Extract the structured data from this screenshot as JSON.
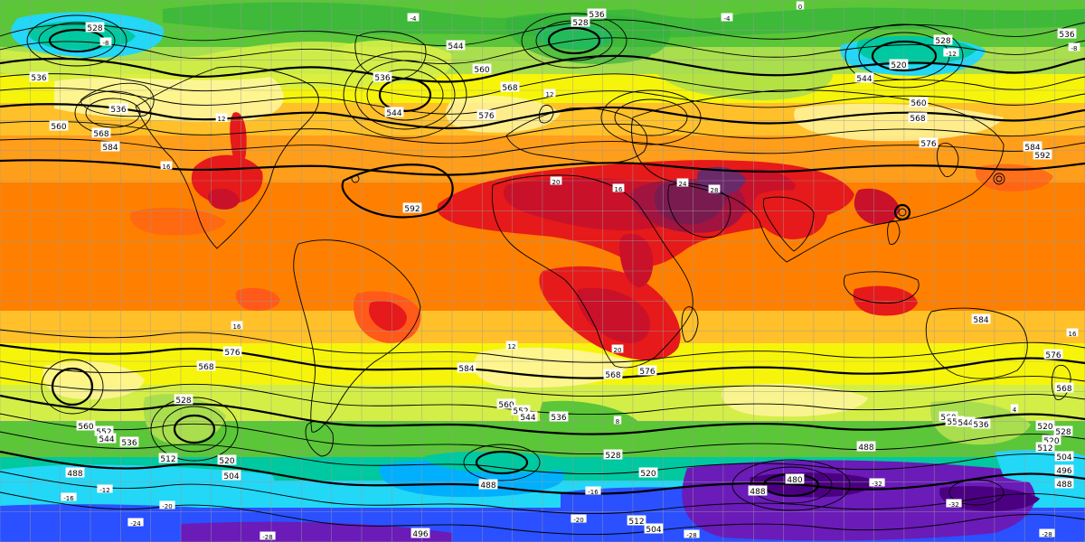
{
  "map": {
    "type": "weather-map",
    "projection": "equirectangular",
    "colors": {
      "purple_dark": "#4b0082",
      "purple": "#6a1bb8",
      "blue": "#2b50ff",
      "cyan_blue": "#00b0ff",
      "cyan": "#23d7f7",
      "teal": "#00c8a0",
      "green_dark": "#32b43c",
      "green": "#5bc638",
      "light_green": "#a9de4e",
      "yellow_green": "#d4ee48",
      "yellow": "#f6f40a",
      "light_yellow": "#fff59c",
      "light_orange": "#ffc02a",
      "orange": "#ff9e1a",
      "dark_orange": "#ff8000",
      "red_orange": "#ff5a1a",
      "red": "#e61a1a",
      "dark_red": "#c9112a",
      "crimson": "#a1143f",
      "maroon": "#7a1b4f",
      "plum": "#6a2a6a",
      "black": "#000000",
      "grid": "#9a9a9a"
    },
    "contour_labels": [
      {
        "text": "528",
        "col": 105,
        "row": 31
      },
      {
        "text": "536",
        "col": 43,
        "row": 86
      },
      {
        "text": "536",
        "col": 131,
        "row": 121
      },
      {
        "text": "560",
        "col": 65,
        "row": 140
      },
      {
        "text": "568",
        "col": 112,
        "row": 148
      },
      {
        "text": "584",
        "col": 122,
        "row": 163
      },
      {
        "text": "536",
        "col": 423,
        "row": 86
      },
      {
        "text": "544",
        "col": 436,
        "row": 125
      },
      {
        "text": "544",
        "col": 504,
        "row": 51
      },
      {
        "text": "528",
        "col": 642,
        "row": 25
      },
      {
        "text": "536",
        "col": 660,
        "row": 16
      },
      {
        "text": "560",
        "col": 533,
        "row": 77
      },
      {
        "text": "568",
        "col": 564,
        "row": 97
      },
      {
        "text": "576",
        "col": 538,
        "row": 128
      },
      {
        "text": "528",
        "col": 1043,
        "row": 45
      },
      {
        "text": "520",
        "col": 994,
        "row": 72
      },
      {
        "text": "544",
        "col": 956,
        "row": 87
      },
      {
        "text": "560",
        "col": 1016,
        "row": 114
      },
      {
        "text": "568",
        "col": 1015,
        "row": 131
      },
      {
        "text": "576",
        "col": 1027,
        "row": 159
      },
      {
        "text": "584",
        "col": 1142,
        "row": 163
      },
      {
        "text": "592",
        "col": 1153,
        "row": 172
      },
      {
        "text": "536",
        "col": 1180,
        "row": 38
      },
      {
        "text": "592",
        "col": 456,
        "row": 231
      },
      {
        "text": "576",
        "col": 257,
        "row": 390
      },
      {
        "text": "568",
        "col": 228,
        "row": 406
      },
      {
        "text": "584",
        "col": 516,
        "row": 408
      },
      {
        "text": "576",
        "col": 716,
        "row": 411
      },
      {
        "text": "568",
        "col": 678,
        "row": 415
      },
      {
        "text": "560",
        "col": 560,
        "row": 448
      },
      {
        "text": "552",
        "col": 576,
        "row": 455
      },
      {
        "text": "544",
        "col": 584,
        "row": 462
      },
      {
        "text": "536",
        "col": 618,
        "row": 462
      },
      {
        "text": "528",
        "col": 203,
        "row": 443
      },
      {
        "text": "560",
        "col": 95,
        "row": 472
      },
      {
        "text": "552",
        "col": 115,
        "row": 478
      },
      {
        "text": "544",
        "col": 118,
        "row": 486
      },
      {
        "text": "536",
        "col": 143,
        "row": 490
      },
      {
        "text": "512",
        "col": 186,
        "row": 508
      },
      {
        "text": "520",
        "col": 251,
        "row": 510
      },
      {
        "text": "504",
        "col": 256,
        "row": 527
      },
      {
        "text": "488",
        "col": 83,
        "row": 524
      },
      {
        "text": "488",
        "col": 540,
        "row": 537
      },
      {
        "text": "520",
        "col": 717,
        "row": 524
      },
      {
        "text": "528",
        "col": 678,
        "row": 504
      },
      {
        "text": "480",
        "col": 879,
        "row": 531
      },
      {
        "text": "488",
        "col": 838,
        "row": 544
      },
      {
        "text": "512",
        "col": 704,
        "row": 577
      },
      {
        "text": "504",
        "col": 723,
        "row": 586
      },
      {
        "text": "496",
        "col": 465,
        "row": 591
      },
      {
        "text": "584",
        "col": 1085,
        "row": 354
      },
      {
        "text": "576",
        "col": 1165,
        "row": 393
      },
      {
        "text": "568",
        "col": 1177,
        "row": 430
      },
      {
        "text": "560",
        "col": 1049,
        "row": 462
      },
      {
        "text": "552",
        "col": 1056,
        "row": 467
      },
      {
        "text": "544",
        "col": 1068,
        "row": 468
      },
      {
        "text": "536",
        "col": 1085,
        "row": 470
      },
      {
        "text": "520",
        "col": 1156,
        "row": 472
      },
      {
        "text": "528",
        "col": 1176,
        "row": 478
      },
      {
        "text": "520",
        "col": 1163,
        "row": 488
      },
      {
        "text": "512",
        "col": 1156,
        "row": 496
      },
      {
        "text": "504",
        "col": 1177,
        "row": 506
      },
      {
        "text": "496",
        "col": 1177,
        "row": 521
      },
      {
        "text": "488",
        "col": 1177,
        "row": 536
      },
      {
        "text": "488",
        "col": 958,
        "row": 495
      }
    ],
    "temperature_labels": [
      {
        "text": "-8",
        "col": 117,
        "row": 47
      },
      {
        "text": "-4",
        "col": 457,
        "row": 20
      },
      {
        "text": "-12",
        "col": 1052,
        "row": 59
      },
      {
        "text": "-12",
        "col": 116,
        "row": 542
      },
      {
        "text": "-16",
        "col": 76,
        "row": 551
      },
      {
        "text": "-20",
        "col": 185,
        "row": 560
      },
      {
        "text": "-24",
        "col": 150,
        "row": 579
      },
      {
        "text": "-16",
        "col": 656,
        "row": 544
      },
      {
        "text": "-20",
        "col": 640,
        "row": 575
      },
      {
        "text": "-28",
        "col": 296,
        "row": 594
      },
      {
        "text": "-28",
        "col": 765,
        "row": 592
      },
      {
        "text": "-32",
        "col": 970,
        "row": 535
      },
      {
        "text": "-32",
        "col": 1055,
        "row": 558
      },
      {
        "text": "-28",
        "col": 1158,
        "row": 591
      },
      {
        "text": "4",
        "col": 1122,
        "row": 453
      },
      {
        "text": "8",
        "col": 683,
        "row": 466
      },
      {
        "text": "12",
        "col": 566,
        "row": 383
      },
      {
        "text": "16",
        "col": 262,
        "row": 361
      },
      {
        "text": "16",
        "col": 1186,
        "row": 369
      },
      {
        "text": "20",
        "col": 683,
        "row": 387
      },
      {
        "text": "24",
        "col": 755,
        "row": 203
      },
      {
        "text": "28",
        "col": 790,
        "row": 210
      },
      {
        "text": "20",
        "col": 615,
        "row": 201
      },
      {
        "text": "16",
        "col": 684,
        "row": 209
      },
      {
        "text": "16",
        "col": 184,
        "row": 184
      },
      {
        "text": "12",
        "col": 245,
        "row": 131
      },
      {
        "text": "12",
        "col": 608,
        "row": 104
      },
      {
        "text": "0",
        "col": 885,
        "row": 7
      },
      {
        "text": "-4",
        "col": 804,
        "row": 20
      },
      {
        "text": "-8",
        "col": 1188,
        "row": 53
      }
    ]
  }
}
